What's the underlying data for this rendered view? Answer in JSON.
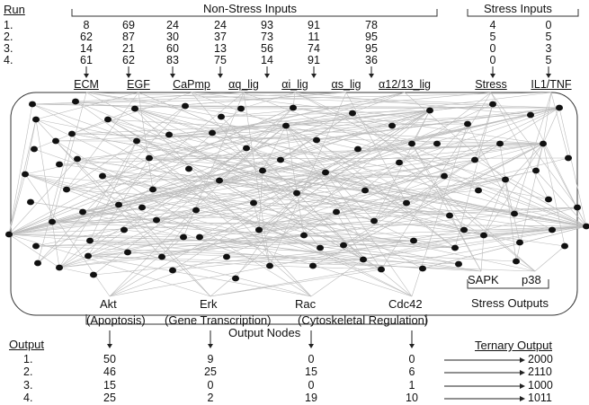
{
  "header": {
    "run_label": "Run",
    "non_stress_title": "Non-Stress Inputs",
    "stress_title": "Stress Inputs"
  },
  "runs": [
    {
      "label": "1.",
      "non_stress": [
        "8",
        "69",
        "24",
        "24",
        "93",
        "91",
        "78"
      ],
      "stress": [
        "4",
        "0"
      ]
    },
    {
      "label": "2.",
      "non_stress": [
        "62",
        "87",
        "30",
        "37",
        "73",
        "11",
        "95"
      ],
      "stress": [
        "5",
        "5"
      ]
    },
    {
      "label": "3.",
      "non_stress": [
        "14",
        "21",
        "60",
        "13",
        "56",
        "74",
        "95"
      ],
      "stress": [
        "0",
        "3"
      ]
    },
    {
      "label": "4.",
      "non_stress": [
        "61",
        "62",
        "83",
        "75",
        "14",
        "91",
        "36"
      ],
      "stress": [
        "0",
        "5"
      ]
    }
  ],
  "input_nodes": [
    "ECM",
    "EGF",
    "CaPmp",
    "αq_lig",
    "αi_lig",
    "αs_lig",
    "α12/13_lig",
    "Stress",
    "IL1/TNF"
  ],
  "output_nodes": [
    "Akt",
    "Erk",
    "Rac",
    "Cdc42"
  ],
  "output_roles": [
    "(Apoptosis)",
    "(Gene Transcription)",
    "(Cytoskeletal Regulation)"
  ],
  "output_nodes_title": "Output Nodes",
  "stress_outputs": {
    "nodes": [
      "SAPK",
      "p38"
    ],
    "title": "Stress Outputs"
  },
  "output_table": {
    "output_label": "Output",
    "ternary_label": "Ternary Output",
    "rows": [
      {
        "label": "1.",
        "values": [
          "50",
          "9",
          "0",
          "0"
        ],
        "ternary": "2000"
      },
      {
        "label": "2.",
        "values": [
          "46",
          "25",
          "15",
          "6"
        ],
        "ternary": "2110"
      },
      {
        "label": "3.",
        "values": [
          "15",
          "0",
          "0",
          "1"
        ],
        "ternary": "1000"
      },
      {
        "label": "4.",
        "values": [
          "25",
          "2",
          "19",
          "10"
        ],
        "ternary": "1011"
      }
    ]
  }
}
